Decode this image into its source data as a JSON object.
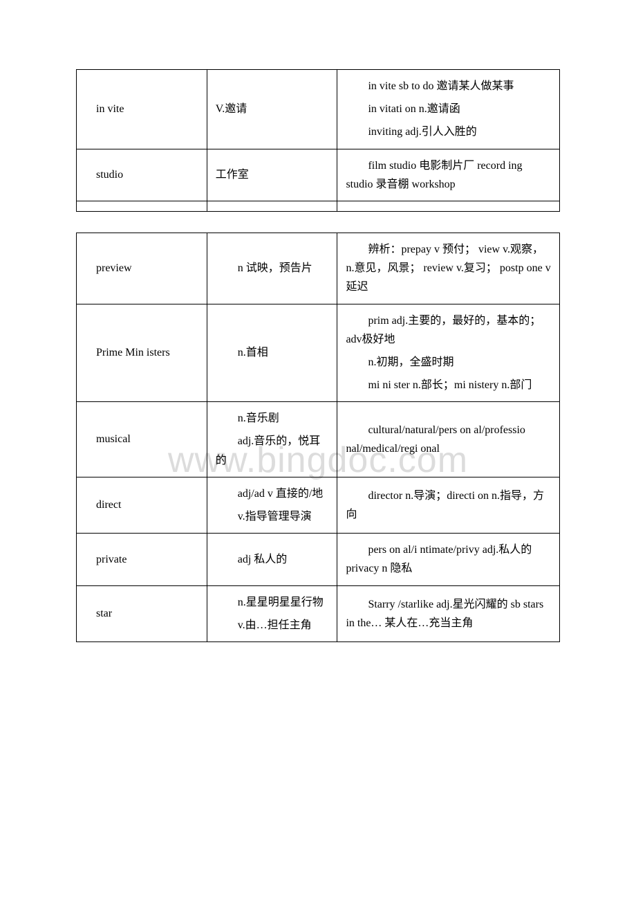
{
  "watermark": "www.bingdoc.com",
  "table1": {
    "rows": [
      {
        "word": "in vite",
        "def": "V.邀请",
        "notes": [
          "in vite sb to do 邀请某人做某事",
          "in vitati on n.邀请函",
          "inviting adj.引人入胜的"
        ]
      },
      {
        "word": "studio",
        "def": "工作室",
        "notes": [
          "film studio 电影制片厂 record ing studio 录音棚 workshop"
        ]
      }
    ]
  },
  "table2": {
    "rows": [
      {
        "word": "preview",
        "defs": [
          "n 试映，预告片"
        ],
        "notes": [
          "辨析：prepay v 预付； view v.观察，n.意见，风景； review v.复习； postp one v 延迟"
        ]
      },
      {
        "word": "Prime Min isters",
        "defs": [
          "n.首相"
        ],
        "notes": [
          "prim adj.主要的，最好的，基本的；adv极好地",
          "n.初期，全盛时期",
          "mi ni ster n.部长；mi nistery n.部门"
        ]
      },
      {
        "word": "musical",
        "defs": [
          "n.音乐剧",
          "adj.音乐的，悦耳的"
        ],
        "notes": [
          "cultural/natural/pers on al/professio nal/medical/regi onal"
        ]
      },
      {
        "word": "direct",
        "defs": [
          "adj/ad v 直接的/地",
          "v.指导管理导演"
        ],
        "notes": [
          "director n.导演；directi on n.指导，方向"
        ]
      },
      {
        "word": "private",
        "defs": [
          "adj 私人的"
        ],
        "notes": [
          "pers on al/i ntimate/privy adj.私人的 privacy n 隐私"
        ]
      },
      {
        "word": "star",
        "defs": [
          "n.星星明星星行物",
          "v.由…担任主角"
        ],
        "notes": [
          "Starry /starlike adj.星光闪耀的 sb stars in the… 某人在…充当主角"
        ]
      }
    ]
  }
}
